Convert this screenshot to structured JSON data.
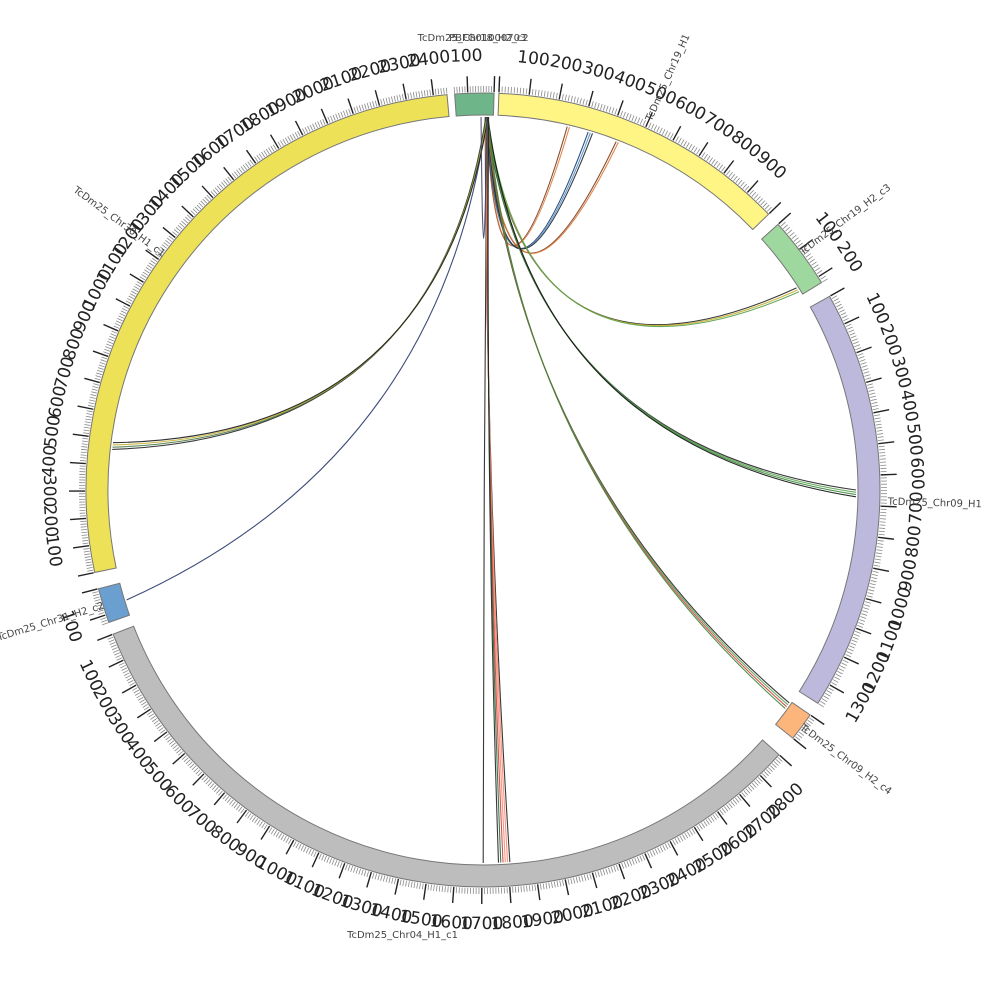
{
  "diagram": {
    "type": "circos",
    "segments": [
      {
        "id": "cap",
        "label": "PBFG01000703",
        "size": 1,
        "color": "#a6c8e0",
        "tick_labels": []
      },
      {
        "id": "chr19h1",
        "label": "TcDm25_Chr19_H1",
        "size": 1000,
        "color": "#fff584",
        "tick_labels": [
          "100",
          "200",
          "300",
          "400",
          "500",
          "600",
          "700",
          "800",
          "900"
        ]
      },
      {
        "id": "chr19h2",
        "label": "TcDm25_Chr19_H2_c3",
        "size": 220,
        "color": "#9fd89f",
        "tick_labels": [
          "100",
          "200"
        ]
      },
      {
        "id": "chr09h1",
        "label": "TcDm25_Chr09_H1",
        "size": 1370,
        "color": "#bcb9dc",
        "tick_labels": [
          "100",
          "200",
          "300",
          "400",
          "500",
          "600",
          "700",
          "800",
          "900",
          "1000",
          "1100",
          "1200",
          "1300"
        ]
      },
      {
        "id": "chr09h2",
        "label": "TcDm25_Chr09_H2_c4",
        "size": 100,
        "color": "#fcb57a",
        "tick_labels": []
      },
      {
        "id": "chr04h1",
        "label": "TcDm25_Chr04_H1_c1",
        "size": 2900,
        "color": "#bdbdbd",
        "tick_labels": [
          "100",
          "200",
          "300",
          "400",
          "500",
          "600",
          "700",
          "800",
          "900",
          "1000",
          "1100",
          "1200",
          "1300",
          "1400",
          "1500",
          "1600",
          "1700",
          "1800",
          "1900",
          "2000",
          "2100",
          "2200",
          "2300",
          "2400",
          "2500",
          "2600",
          "2700",
          "2800"
        ]
      },
      {
        "id": "chr31h2",
        "label": "TcDm25_Chr31_H2_c2",
        "size": 130,
        "color": "#6a9fd0",
        "tick_labels": [
          "100"
        ]
      },
      {
        "id": "chr30h1",
        "label": "TcDm25_Chr30_H1_c1",
        "size": 2450,
        "color": "#ede158",
        "tick_labels": [
          "100",
          "200",
          "300",
          "400",
          "500",
          "600",
          "700",
          "800",
          "900",
          "1000",
          "1100",
          "1200",
          "1300",
          "1400",
          "1500",
          "1600",
          "1700",
          "1800",
          "1900",
          "2000",
          "2100",
          "2200",
          "2300",
          "2400"
        ]
      },
      {
        "id": "chr18h2",
        "label": "TcDm25_Chr18_H2_c2",
        "size": 150,
        "color": "#6eb58a",
        "tick_labels": [
          "100"
        ]
      }
    ],
    "links": [
      {
        "from": "cap",
        "to": "chr19h1",
        "pos": 250,
        "colors": [
          "#7a3b1a",
          "#e07a3a"
        ]
      },
      {
        "from": "cap",
        "to": "chr19h1",
        "pos": 330,
        "colors": [
          "#1a3a6b",
          "#4a90d0",
          "#222222"
        ]
      },
      {
        "from": "cap",
        "to": "chr19h1",
        "pos": 430,
        "colors": [
          "#7a3b1a",
          "#e07a3a"
        ]
      },
      {
        "from": "cap",
        "to": "chr19h2",
        "pos": 200,
        "colors": [
          "#222222",
          "#c8b030",
          "#5aa050"
        ]
      },
      {
        "from": "cap",
        "to": "chr09h1",
        "pos": 660,
        "colors": [
          "#222222",
          "#5aa050",
          "#3a8a3a",
          "#111111"
        ]
      },
      {
        "from": "cap",
        "to": "chr09h2",
        "pos": 20,
        "colors": [
          "#222222",
          "#5aa050",
          "#d04040",
          "#3a8a3a"
        ]
      },
      {
        "from": "cap",
        "to": "chr04h1",
        "pos": 1705,
        "colors": [
          "#222222"
        ]
      },
      {
        "from": "cap",
        "to": "chr04h1",
        "pos": 1785,
        "colors": [
          "#222222",
          "#fa8a70",
          "#fa8a70",
          "#d04040",
          "#2a6a3a",
          "#222222"
        ]
      },
      {
        "from": "cap",
        "to": "chr31h2",
        "pos": 70,
        "colors": [
          "#2a3a6b"
        ]
      },
      {
        "from": "cap",
        "to": "chr30h1",
        "pos": 475,
        "colors": [
          "#222222",
          "#4a7a4a",
          "#c8b030",
          "#1a1a1a"
        ]
      },
      {
        "from": "cap",
        "to": "chr18h2",
        "pos": 50,
        "colors": [
          "#444466"
        ]
      }
    ]
  }
}
